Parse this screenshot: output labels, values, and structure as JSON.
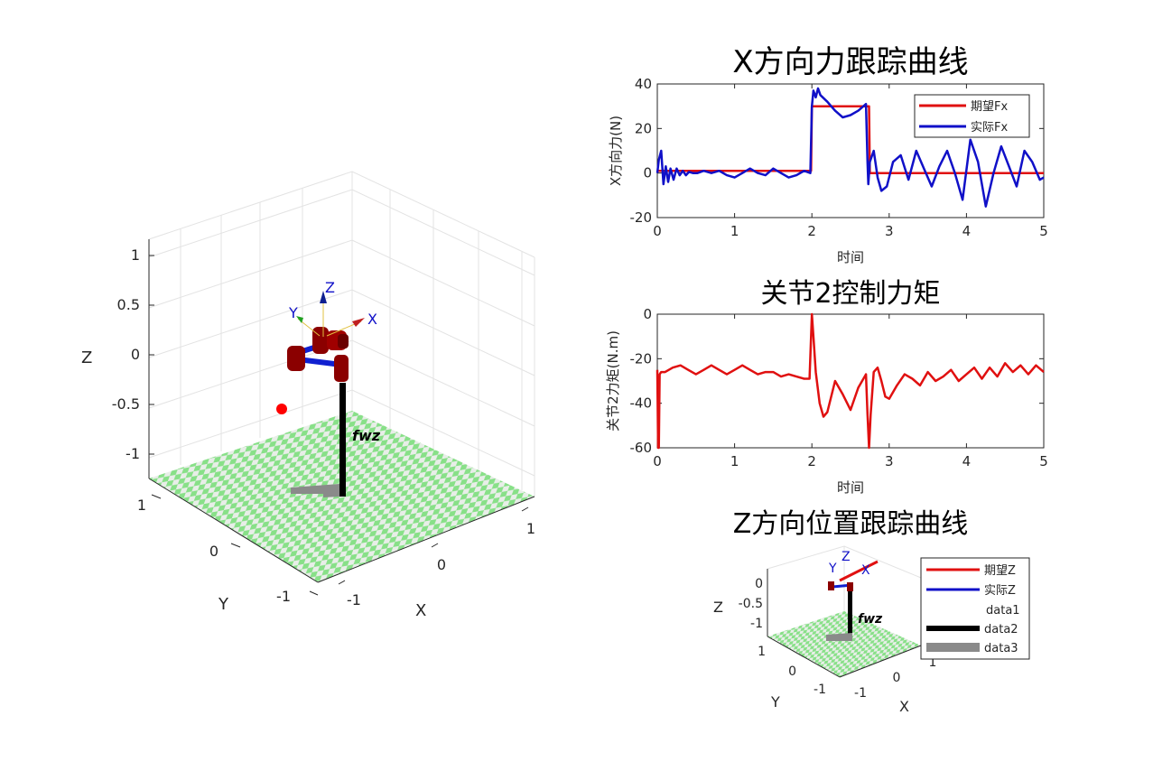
{
  "colors": {
    "desired": "#e01010",
    "actual": "#1010c8",
    "torque": "#e01010",
    "robot_red": "#8b0000",
    "robot_blue": "#1020d0",
    "floor_green": "#88e088",
    "floor_light": "#e8eee8",
    "axis": "#262626",
    "grid": "#dcdcdc"
  },
  "scene3d": {
    "z_label": "Z",
    "y_label": "Y",
    "x_label": "X",
    "z_ticks": [
      "1",
      "0.5",
      "0",
      "-0.5",
      "-1"
    ],
    "y_ticks": [
      "1",
      "0",
      "-1"
    ],
    "x_ticks": [
      "-1",
      "0",
      "1"
    ],
    "frame_labels": {
      "x": "X",
      "y": "Y",
      "z": "Z"
    },
    "robot_name": "fwz"
  },
  "chart_data": [
    {
      "type": "line",
      "title": "X方向力跟踪曲线",
      "xlabel": "时间",
      "ylabel": "X方向力(N)",
      "xlim": [
        0,
        5
      ],
      "ylim": [
        -20,
        40
      ],
      "xticks": [
        0,
        1,
        2,
        3,
        4,
        5
      ],
      "yticks": [
        -20,
        0,
        20,
        40
      ],
      "legend_position": "top-right",
      "series": [
        {
          "name": "期望Fx",
          "x": [
            0,
            1.99,
            2.0,
            2.74,
            2.75,
            5
          ],
          "y": [
            1,
            1,
            30,
            30,
            0,
            0
          ]
        },
        {
          "name": "实际Fx",
          "x": [
            0,
            0.02,
            0.05,
            0.08,
            0.11,
            0.14,
            0.17,
            0.21,
            0.25,
            0.29,
            0.33,
            0.37,
            0.41,
            0.46,
            0.52,
            0.6,
            0.7,
            0.8,
            0.9,
            1.0,
            1.1,
            1.2,
            1.3,
            1.4,
            1.5,
            1.6,
            1.7,
            1.8,
            1.9,
            1.98,
            2.0,
            2.02,
            2.05,
            2.08,
            2.11,
            2.14,
            2.17,
            2.2,
            2.25,
            2.3,
            2.4,
            2.5,
            2.6,
            2.7,
            2.72,
            2.73,
            2.75,
            2.8,
            2.85,
            2.9,
            2.97,
            3.05,
            3.15,
            3.25,
            3.35,
            3.45,
            3.55,
            3.65,
            3.75,
            3.85,
            3.95,
            4.05,
            4.15,
            4.25,
            4.35,
            4.45,
            4.55,
            4.65,
            4.75,
            4.85,
            4.95,
            5.0
          ],
          "y": [
            0,
            6,
            10,
            -5,
            3,
            -4,
            2,
            -3,
            2,
            -1,
            1,
            -1,
            0.5,
            0,
            0,
            1,
            0,
            1,
            -1,
            -2,
            0,
            2,
            0,
            -1,
            2,
            0,
            -2,
            -1,
            1,
            0,
            30,
            37,
            34,
            38,
            35,
            34,
            33,
            32,
            30,
            28,
            25,
            26,
            28,
            31,
            5,
            -5,
            5,
            10,
            -2,
            -8,
            -6,
            5,
            8,
            -3,
            10,
            2,
            -6,
            3,
            10,
            0,
            -12,
            15,
            5,
            -15,
            0,
            12,
            3,
            -6,
            10,
            5,
            -3,
            -2
          ]
        }
      ]
    },
    {
      "type": "line",
      "title": "关节2控制力矩",
      "xlabel": "时间",
      "ylabel": "关节2力矩(N.m)",
      "xlim": [
        0,
        5
      ],
      "ylim": [
        -60,
        0
      ],
      "xticks": [
        0,
        1,
        2,
        3,
        4,
        5
      ],
      "yticks": [
        -60,
        -40,
        -20,
        0
      ],
      "series": [
        {
          "name": "",
          "x": [
            0,
            0.01,
            0.02,
            0.03,
            0.05,
            0.1,
            0.2,
            0.3,
            0.4,
            0.5,
            0.6,
            0.7,
            0.8,
            0.9,
            1.0,
            1.1,
            1.2,
            1.3,
            1.4,
            1.5,
            1.6,
            1.7,
            1.8,
            1.9,
            1.97,
            1.99,
            2.0,
            2.02,
            2.05,
            2.1,
            2.15,
            2.2,
            2.3,
            2.4,
            2.5,
            2.6,
            2.7,
            2.72,
            2.74,
            2.76,
            2.8,
            2.85,
            2.9,
            2.95,
            3.0,
            3.1,
            3.2,
            3.3,
            3.4,
            3.5,
            3.6,
            3.7,
            3.8,
            3.9,
            4.0,
            4.1,
            4.2,
            4.3,
            4.4,
            4.5,
            4.6,
            4.7,
            4.8,
            4.9,
            5.0
          ],
          "y": [
            -25,
            -60,
            -60,
            -27,
            -26,
            -26,
            -24,
            -23,
            -25,
            -27,
            -25,
            -23,
            -25,
            -27,
            -25,
            -23,
            -25,
            -27,
            -26,
            -26,
            -28,
            -27,
            -28,
            -29,
            -29,
            -10,
            0,
            -10,
            -26,
            -40,
            -46,
            -44,
            -30,
            -36,
            -43,
            -33,
            -27,
            -45,
            -60,
            -45,
            -26,
            -24,
            -30,
            -37,
            -38,
            -32,
            -27,
            -29,
            -32,
            -26,
            -30,
            -28,
            -25,
            -30,
            -27,
            -24,
            -29,
            -24,
            -28,
            -22,
            -26,
            -23,
            -27,
            -23,
            -26
          ]
        }
      ]
    },
    {
      "type": "scatter",
      "title": "Z方向位置跟踪曲线",
      "xlabel": "X",
      "ylabel": "Z",
      "zlabel": "Y",
      "ztick_labels": [
        "0",
        "-0.5",
        "-1"
      ],
      "y_ticks": [
        "1",
        "0",
        "-1"
      ],
      "x_ticks": [
        "-1",
        "0",
        "1"
      ],
      "frame_labels": {
        "x": "X",
        "y": "Y",
        "z": "Z"
      },
      "robot_name": "fwz",
      "legend_position": "right",
      "series": [
        {
          "name": "期望Z"
        },
        {
          "name": "实际Z"
        },
        {
          "name": "data1"
        },
        {
          "name": "data2"
        },
        {
          "name": "data3"
        }
      ]
    }
  ]
}
